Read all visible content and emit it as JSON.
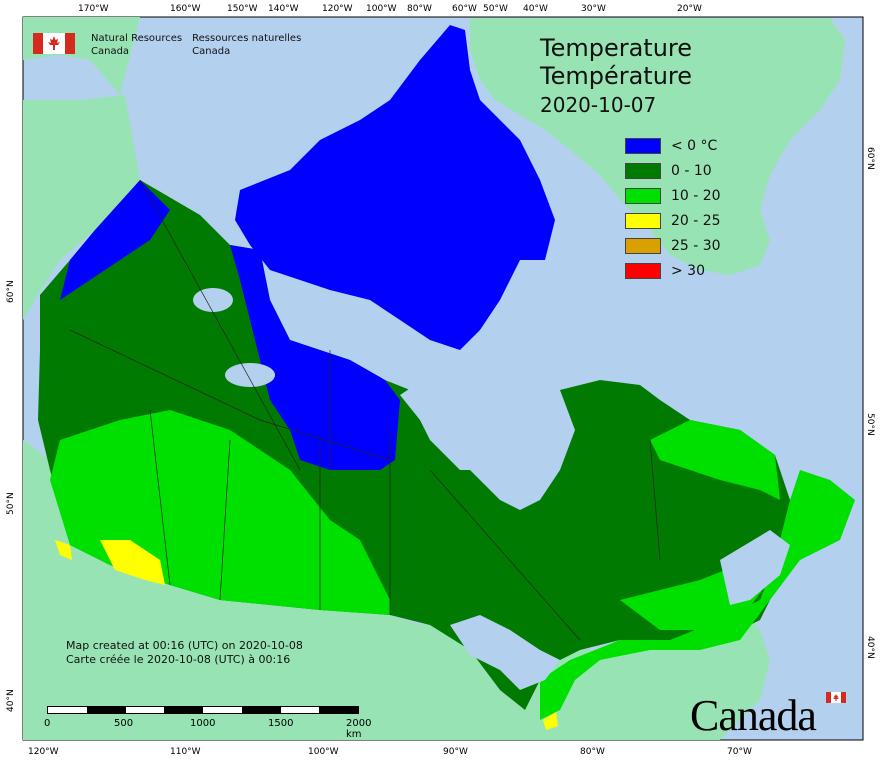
{
  "agency": {
    "name_en_line1": "Natural Resources",
    "name_en_line2": "Canada",
    "name_fr_line1": "Ressources naturelles",
    "name_fr_line2": "Canada"
  },
  "title": {
    "en": "Temperature",
    "fr": "Température",
    "date": "2020-10-07"
  },
  "legend": [
    {
      "label": "< 0 °C",
      "color": "#0000ff"
    },
    {
      "label": "0 - 10",
      "color": "#007a00"
    },
    {
      "label": "10 - 20",
      "color": "#00e000"
    },
    {
      "label": "20 - 25",
      "color": "#ffff00"
    },
    {
      "label": "25 - 30",
      "color": "#d9a000"
    },
    {
      "label": "> 30",
      "color": "#ff0000"
    }
  ],
  "credits": {
    "line1": "Map created at 00:16 (UTC) on 2020-10-08",
    "line2": "Carte créée le 2020-10-08 (UTC) à 00:16"
  },
  "scale": {
    "labels": [
      "0",
      "500",
      "1000",
      "1500",
      "2000  km"
    ]
  },
  "axes": {
    "top": [
      "170°W",
      "160°W",
      "150°W",
      "140°W",
      "120°W",
      "100°W",
      "80°W",
      "60°W",
      "50°W",
      "40°W",
      "30°W",
      "20°W"
    ],
    "bottom": [
      "120°W",
      "110°W",
      "100°W",
      "90°W",
      "80°W",
      "70°W"
    ],
    "left": [
      "60°N",
      "50°N",
      "40°N"
    ],
    "right": [
      "60°N",
      "50°N",
      "40°N"
    ]
  },
  "colors": {
    "ocean": "#b3d1ee",
    "land_other": "#98e3b4",
    "border": "#222222"
  },
  "wordmark": "Canada"
}
